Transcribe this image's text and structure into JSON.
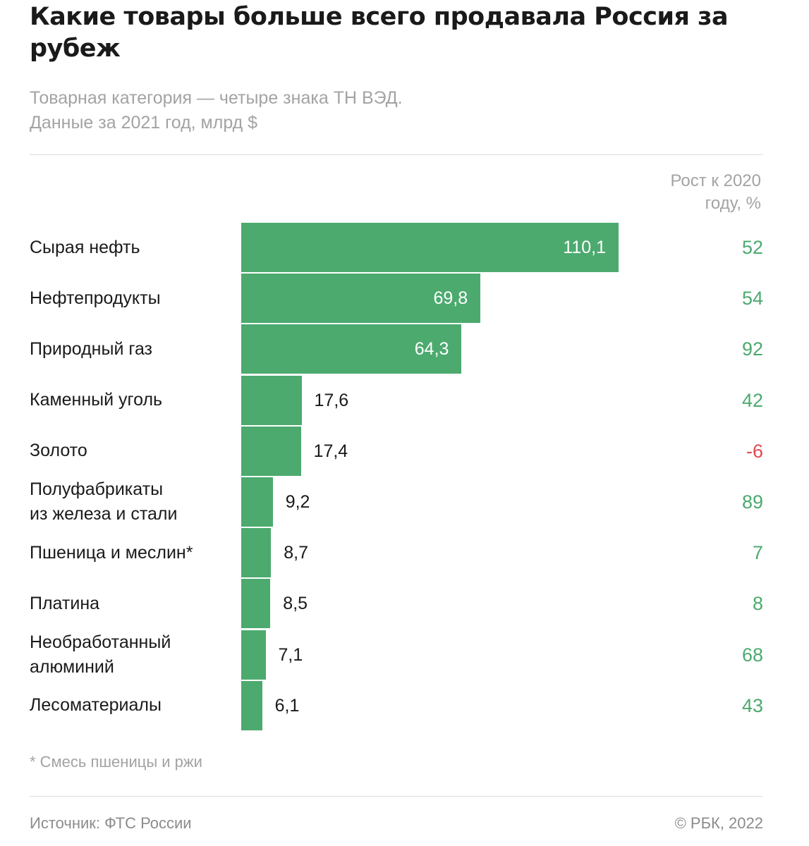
{
  "header": {
    "title": "Какие товары больше всего продавала Россия за рубеж",
    "subtitle_line1": "Товарная категория — четыре знака ТН ВЭД.",
    "subtitle_line2": "Данные за 2021 год, млрд $"
  },
  "growth_header": {
    "line1": "Рост к 2020",
    "line2": "году, %"
  },
  "chart_data": {
    "type": "bar",
    "orientation": "horizontal",
    "title": "Какие товары больше всего продавала Россия за рубеж",
    "categories": [
      [
        "Сырая нефть"
      ],
      [
        "Нефтепродукты"
      ],
      [
        "Природный газ"
      ],
      [
        "Каменный уголь"
      ],
      [
        "Золото"
      ],
      [
        "Полуфабрикаты",
        "из железа и стали"
      ],
      [
        "Пшеница и меслин*"
      ],
      [
        "Платина"
      ],
      [
        "Необработанный",
        "алюминий"
      ],
      [
        "Лесоматериалы"
      ]
    ],
    "series": [
      {
        "values": [
          110.1,
          69.8,
          64.3,
          17.6,
          17.4,
          9.2,
          8.7,
          8.5,
          7.1,
          6.1
        ],
        "labels": [
          "110,1",
          "69,8",
          "64,3",
          "17,6",
          "17,4",
          "9,2",
          "8,7",
          "8,5",
          "7,1",
          "6,1"
        ]
      }
    ],
    "growth": {
      "values": [
        52,
        54,
        92,
        42,
        -6,
        89,
        7,
        8,
        68,
        43
      ],
      "labels": [
        "52",
        "54",
        "92",
        "42",
        "-6",
        "89",
        "7",
        "8",
        "68",
        "43"
      ]
    },
    "xlim": [
      0,
      110.1
    ],
    "grid": false,
    "colors": {
      "bar": "#4caa6f",
      "growth_positive": "#4caa6f",
      "growth_negative": "#e5484d"
    }
  },
  "footnote": "* Смесь пшеницы и ржи",
  "footer": {
    "source": "Источник: ФТС России",
    "copyright": "© РБК, 2022"
  }
}
